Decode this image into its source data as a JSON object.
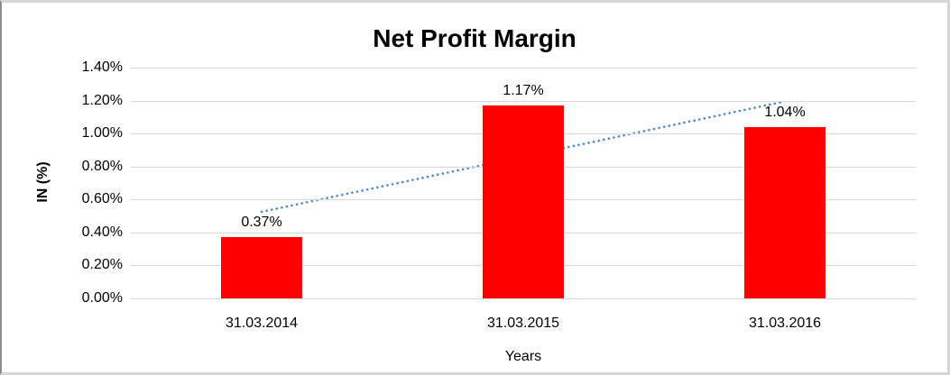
{
  "chart_data": {
    "type": "bar",
    "title": "Net Profit Margin",
    "xlabel": "Years",
    "ylabel": "IN (%)",
    "categories": [
      "31.03.2014",
      "31.03.2015",
      "31.03.2016"
    ],
    "values": [
      0.37,
      1.17,
      1.04
    ],
    "data_labels": [
      "0.37%",
      "1.17%",
      "1.04%"
    ],
    "yticks": [
      "0.00%",
      "0.20%",
      "0.40%",
      "0.60%",
      "0.80%",
      "1.00%",
      "1.20%",
      "1.40%"
    ],
    "ylim": [
      0,
      1.4
    ],
    "grid": true,
    "legend": "none",
    "trendline": {
      "type": "linear",
      "style": "dotted",
      "color": "#4e86c8"
    },
    "colors": {
      "bar": "#ff0000",
      "gridline": "#d9d9d9",
      "text": "#000000",
      "background": "#ffffff"
    }
  }
}
